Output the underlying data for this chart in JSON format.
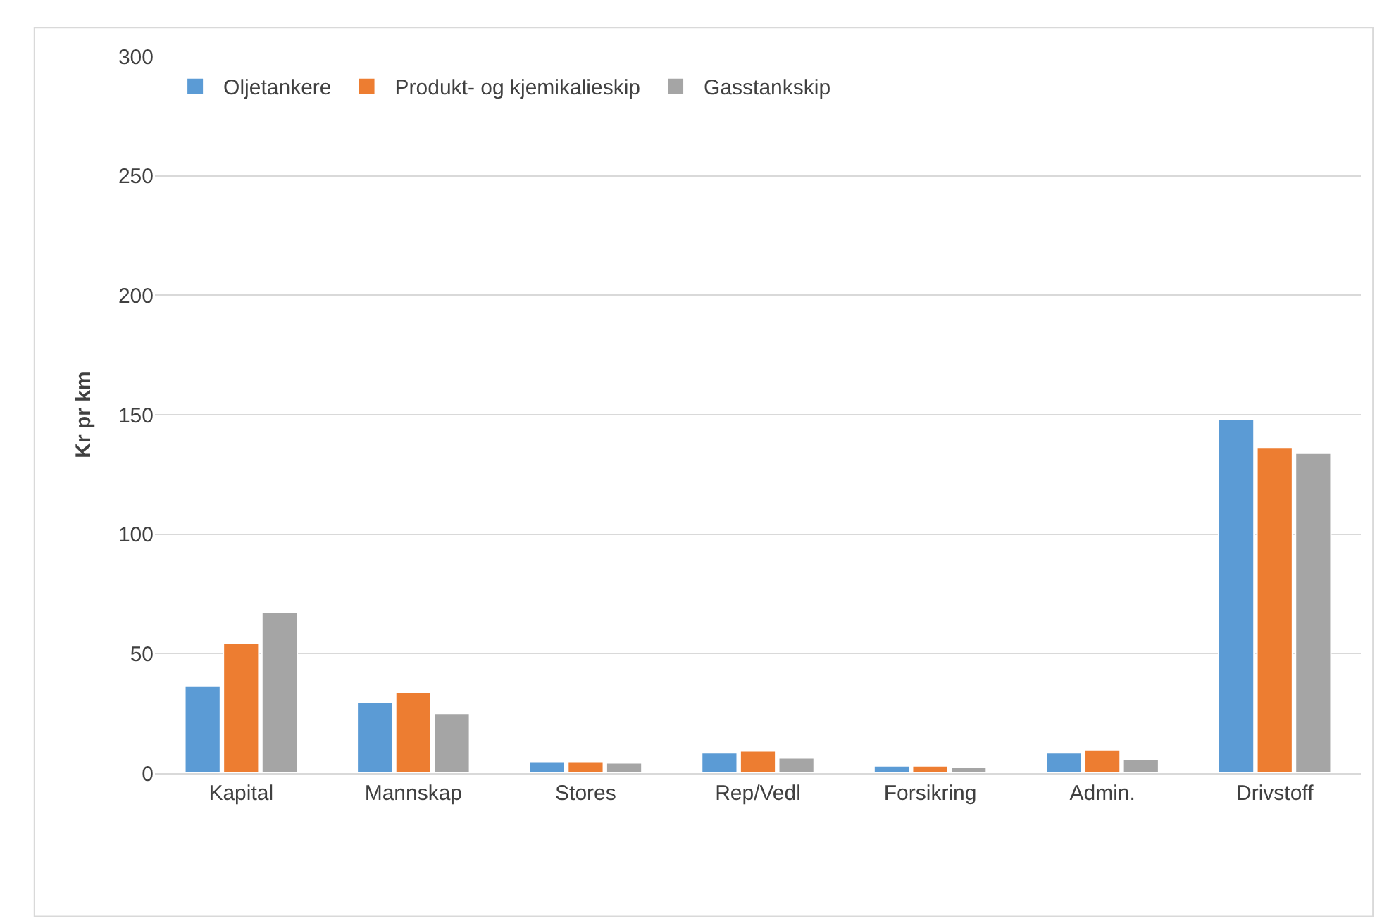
{
  "chart_data": {
    "type": "bar",
    "ylabel": "Kr pr km",
    "categories": [
      "Kapital",
      "Mannskap",
      "Stores",
      "Rep/Vedl",
      "Forsikring",
      "Admin.",
      "Drivstoff"
    ],
    "series": [
      {
        "name": "Oljetankere",
        "color": "#5b9bd5",
        "values": [
          36.6,
          29.7,
          4.9,
          8.5,
          3.0,
          8.5,
          148.2
        ]
      },
      {
        "name": "Produkt- og kjemikalieskip",
        "color": "#ed7d31",
        "values": [
          54.5,
          33.9,
          4.9,
          9.3,
          3.0,
          9.8,
          136.4
        ]
      },
      {
        "name": "Gasstankskip",
        "color": "#a5a5a5",
        "values": [
          67.5,
          25.0,
          4.3,
          6.3,
          2.4,
          5.7,
          133.9
        ]
      }
    ],
    "ylim": [
      0,
      300
    ],
    "yticks": [
      0,
      50,
      100,
      150,
      200,
      250,
      300
    ],
    "grid": "y",
    "legend": "top left"
  }
}
